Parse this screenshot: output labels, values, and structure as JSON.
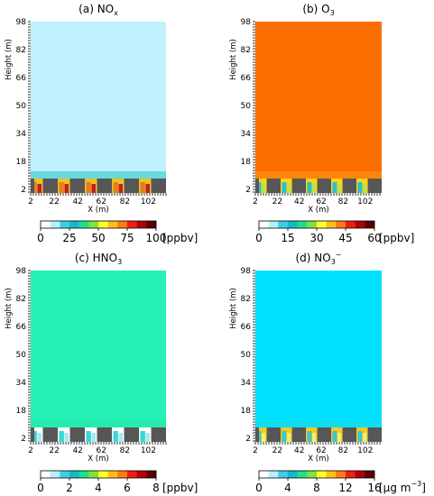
{
  "chart_data": [
    {
      "type": "heatmap",
      "title": "(a) NO",
      "title_sub": "x",
      "xlabel": "X (m)",
      "ylabel": "Height (m)",
      "xticks": [
        "2",
        "22",
        "42",
        "62",
        "82",
        "102"
      ],
      "yticks": [
        "2",
        "18",
        "34",
        "50",
        "66",
        "82",
        "98"
      ],
      "colorbar": {
        "ticks": [
          "0",
          "25",
          "50",
          "75",
          "100"
        ],
        "unit": "[ppbv]",
        "range": [
          0,
          100
        ]
      },
      "field": {
        "background": "#bff0fb",
        "street_colors": [
          "#f0c020",
          "#e08020",
          "#c02020",
          "#1ec8c8"
        ]
      }
    },
    {
      "type": "heatmap",
      "title": "(b) O",
      "title_sub": "3",
      "xlabel": "X (m)",
      "ylabel": "Height (m)",
      "xticks": [
        "2",
        "22",
        "42",
        "62",
        "82",
        "102"
      ],
      "yticks": [
        "2",
        "18",
        "34",
        "50",
        "66",
        "82",
        "98"
      ],
      "colorbar": {
        "ticks": [
          "0",
          "15",
          "30",
          "45",
          "60"
        ],
        "unit": "[ppbv]",
        "range": [
          0,
          60
        ]
      },
      "field": {
        "background": "#fd6e00",
        "street_colors": [
          "#fbd41b",
          "#2ec0c8",
          "#bce34a",
          "#fc9a10"
        ]
      }
    },
    {
      "type": "heatmap",
      "title": "(c) HNO",
      "title_sub": "3",
      "xlabel": "X (m)",
      "ylabel": "Height (m)",
      "xticks": [
        "2",
        "22",
        "42",
        "62",
        "82",
        "102"
      ],
      "yticks": [
        "2",
        "18",
        "34",
        "50",
        "66",
        "82",
        "98"
      ],
      "colorbar": {
        "ticks": [
          "0",
          "2",
          "4",
          "6",
          "8"
        ],
        "unit": "[ppbv]",
        "range": [
          0,
          8
        ]
      },
      "field": {
        "background": "#26f2b8",
        "street_colors": [
          "#ffffff",
          "#39d7d6",
          "#a6e8ee",
          "#24e6a6"
        ]
      }
    },
    {
      "type": "heatmap",
      "title": "(d) NO",
      "title_sub": "3",
      "title_sup": "−",
      "xlabel": "X (m)",
      "ylabel": "Height (m)",
      "xticks": [
        "2",
        "22",
        "42",
        "62",
        "82",
        "102"
      ],
      "yticks": [
        "2",
        "18",
        "34",
        "50",
        "66",
        "82",
        "98"
      ],
      "colorbar": {
        "ticks": [
          "0",
          "4",
          "8",
          "12",
          "16"
        ],
        "unit": "[μg m",
        "unit_sup": "−3",
        "unit_end": "]",
        "range": [
          0,
          16
        ]
      },
      "field": {
        "background": "#00e1ff",
        "street_colors": [
          "#f8c81f",
          "#3ec8c6",
          "#f2f070",
          "#19dbe8"
        ]
      }
    }
  ]
}
